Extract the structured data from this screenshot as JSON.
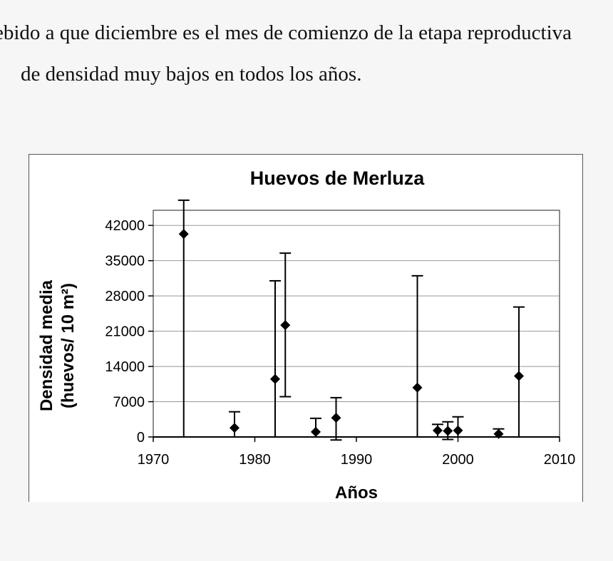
{
  "document": {
    "line1": "ebido a que diciembre es el mes de comienzo de la etapa reproductiva",
    "line2": "de densidad muy bajos en todos los años."
  },
  "chart_data": {
    "type": "scatter",
    "title": "Huevos de Merluza",
    "xlabel": "Años",
    "ylabel_line1": "Densidad media",
    "ylabel_line2": "(huevos/ 10 m²)",
    "xlim": [
      1970,
      2010
    ],
    "ylim": [
      0,
      45000
    ],
    "xticks": [
      1970,
      1980,
      1990,
      2000,
      2010
    ],
    "yticks": [
      0,
      7000,
      14000,
      21000,
      28000,
      35000,
      42000
    ],
    "grid": true,
    "legend": "none",
    "series": [
      {
        "points": [
          {
            "x": 1973,
            "y": 40300,
            "low": 0,
            "high": 47000
          },
          {
            "x": 1978,
            "y": 1800,
            "low": 0,
            "high": 5000
          },
          {
            "x": 1982,
            "y": 11500,
            "low": 0,
            "high": 31000
          },
          {
            "x": 1983,
            "y": 22200,
            "low": 8000,
            "high": 36500
          },
          {
            "x": 1986,
            "y": 1000,
            "low": 0,
            "high": 3700
          },
          {
            "x": 1988,
            "y": 3800,
            "low": -600,
            "high": 7800
          },
          {
            "x": 1996,
            "y": 9800,
            "low": 0,
            "high": 32000
          },
          {
            "x": 1998,
            "y": 1300,
            "low": 0,
            "high": 2500
          },
          {
            "x": 1999,
            "y": 1200,
            "low": -500,
            "high": 3000
          },
          {
            "x": 2000,
            "y": 1300,
            "low": 0,
            "high": 4000
          },
          {
            "x": 2004,
            "y": 600,
            "low": 0,
            "high": 1600
          },
          {
            "x": 2006,
            "y": 12100,
            "low": 0,
            "high": 25800
          }
        ]
      }
    ]
  }
}
